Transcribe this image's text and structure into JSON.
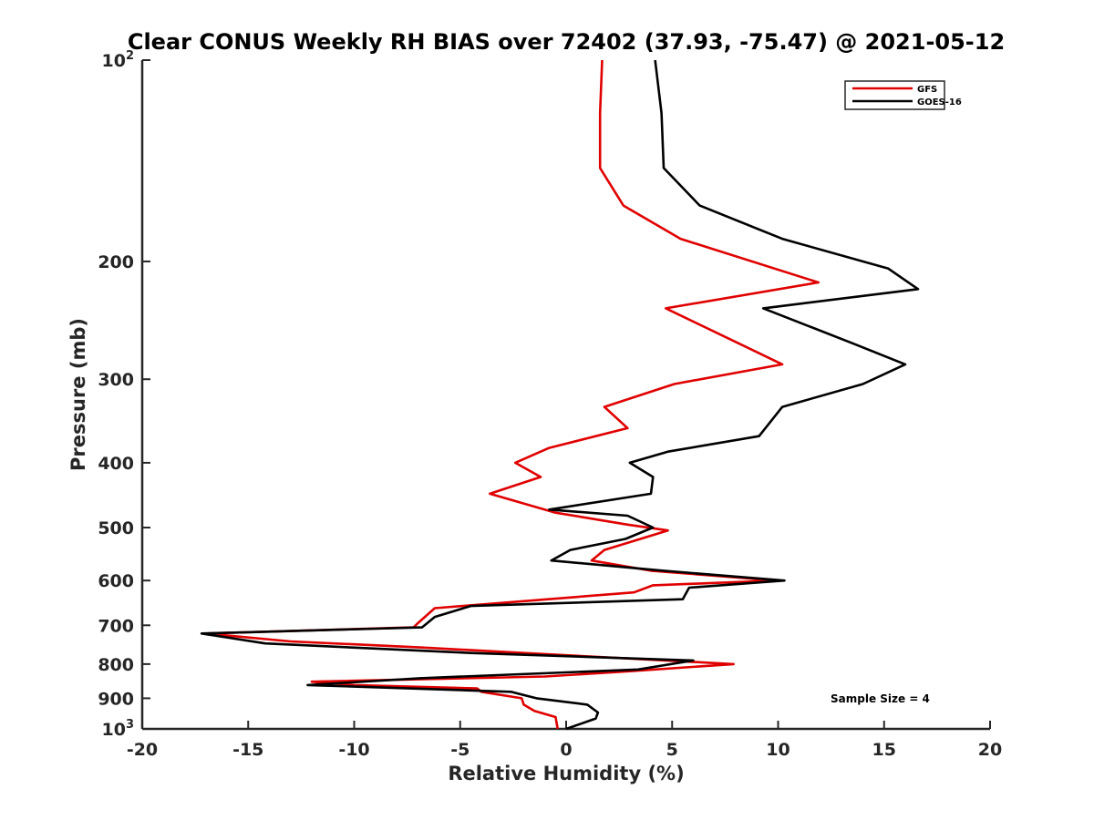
{
  "chart_data": {
    "type": "line",
    "title": "Clear CONUS Weekly RH BIAS over 72402 (37.93, -75.47) @ 2021-05-12",
    "xlabel": "Relative Humidity (%)",
    "ylabel": "Pressure (mb)",
    "xlim": [
      -20,
      20
    ],
    "ylim": [
      1000,
      100
    ],
    "yscale": "log",
    "xticks": [
      -20,
      -15,
      -10,
      -5,
      0,
      5,
      10,
      15,
      20
    ],
    "xtick_labels": [
      "-20",
      "-15",
      "-10",
      "-5",
      "0",
      "5",
      "10",
      "15",
      "20"
    ],
    "yticks": [
      {
        "value": 100,
        "base": "10",
        "exp": "2"
      },
      {
        "value": 200,
        "base": "200",
        "exp": ""
      },
      {
        "value": 300,
        "base": "300",
        "exp": ""
      },
      {
        "value": 400,
        "base": "400",
        "exp": ""
      },
      {
        "value": 500,
        "base": "500",
        "exp": ""
      },
      {
        "value": 600,
        "base": "600",
        "exp": ""
      },
      {
        "value": 700,
        "base": "700",
        "exp": ""
      },
      {
        "value": 800,
        "base": "800",
        "exp": ""
      },
      {
        "value": 900,
        "base": "900",
        "exp": ""
      },
      {
        "value": 1000,
        "base": "10",
        "exp": "3"
      }
    ],
    "legend_position": "top-right",
    "annotation": "Sample Size = 4",
    "series": [
      {
        "name": "GFS",
        "color": "#e00000",
        "x": [
          1.7,
          1.6,
          1.6,
          2.7,
          5.4,
          11.9,
          4.7,
          10.2,
          5.1,
          1.8,
          2.9,
          -0.8,
          -2.4,
          -1.2,
          -3.6,
          -0.5,
          2.9,
          4.8,
          1.8,
          1.2,
          4.0,
          9.9,
          4.1,
          3.2,
          -6.2,
          -7.0,
          -7.2,
          -17.0,
          -13.0,
          -7.0,
          -2.0,
          3.0,
          7.9,
          3.0,
          -1.0,
          -12.0,
          -10.0,
          -4.2,
          -4.0,
          -2.1,
          -2.0,
          -1.5,
          -0.5,
          -0.4
        ],
        "y": [
          100,
          120,
          145,
          165,
          185,
          215,
          235,
          285,
          305,
          330,
          355,
          380,
          400,
          420,
          445,
          475,
          495,
          505,
          540,
          560,
          580,
          600,
          610,
          625,
          660,
          695,
          705,
          720,
          740,
          755,
          770,
          785,
          800,
          820,
          835,
          850,
          860,
          870,
          880,
          900,
          920,
          940,
          960,
          1000
        ]
      },
      {
        "name": "GOES-16",
        "color": "#000000",
        "x": [
          4.2,
          4.5,
          4.6,
          6.3,
          10.2,
          15.2,
          16.6,
          9.3,
          13.5,
          16.0,
          14.0,
          10.2,
          9.1,
          4.8,
          3.0,
          4.1,
          4.0,
          -0.8,
          2.9,
          4.1,
          2.8,
          0.2,
          -0.7,
          4.6,
          10.3,
          5.8,
          5.5,
          -4.5,
          -6.2,
          -6.8,
          -17.2,
          -14.2,
          -4.5,
          6.0,
          3.4,
          -6.9,
          -12.2,
          -2.6,
          -1.4,
          1.0,
          1.5,
          1.4,
          0.0
        ],
        "y": [
          100,
          120,
          145,
          165,
          185,
          205,
          220,
          235,
          265,
          285,
          305,
          330,
          365,
          385,
          400,
          420,
          445,
          470,
          480,
          500,
          520,
          540,
          560,
          580,
          600,
          615,
          640,
          655,
          680,
          705,
          720,
          745,
          770,
          790,
          815,
          840,
          860,
          880,
          900,
          920,
          945,
          965,
          1000
        ]
      }
    ]
  }
}
